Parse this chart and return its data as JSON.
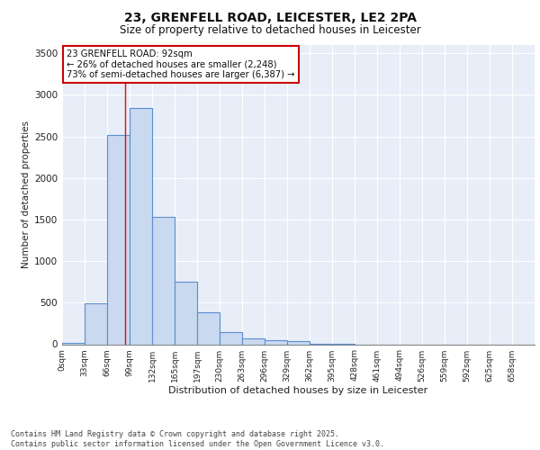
{
  "title_line1": "23, GRENFELL ROAD, LEICESTER, LE2 2PA",
  "title_line2": "Size of property relative to detached houses in Leicester",
  "xlabel": "Distribution of detached houses by size in Leicester",
  "ylabel": "Number of detached properties",
  "categories": [
    "0sqm",
    "33sqm",
    "66sqm",
    "99sqm",
    "132sqm",
    "165sqm",
    "197sqm",
    "230sqm",
    "263sqm",
    "296sqm",
    "329sqm",
    "362sqm",
    "395sqm",
    "428sqm",
    "461sqm",
    "494sqm",
    "526sqm",
    "559sqm",
    "592sqm",
    "625sqm",
    "658sqm"
  ],
  "values": [
    15,
    490,
    2520,
    2840,
    1530,
    750,
    380,
    150,
    70,
    50,
    40,
    5,
    5,
    0,
    0,
    0,
    0,
    0,
    0,
    0,
    0
  ],
  "bar_color": "#c9d9f0",
  "bar_edge_color": "#5b8fcf",
  "bar_linewidth": 0.8,
  "red_line_x": 2.8,
  "annotation_title": "23 GRENFELL ROAD: 92sqm",
  "annotation_line1": "← 26% of detached houses are smaller (2,248)",
  "annotation_line2": "73% of semi-detached houses are larger (6,387) →",
  "annotation_box_color": "#ffffff",
  "annotation_box_edge_color": "#cc0000",
  "ylim": [
    0,
    3600
  ],
  "yticks": [
    0,
    500,
    1000,
    1500,
    2000,
    2500,
    3000,
    3500
  ],
  "background_color": "#e8eef8",
  "grid_color": "#ffffff",
  "footer_line1": "Contains HM Land Registry data © Crown copyright and database right 2025.",
  "footer_line2": "Contains public sector information licensed under the Open Government Licence v3.0."
}
